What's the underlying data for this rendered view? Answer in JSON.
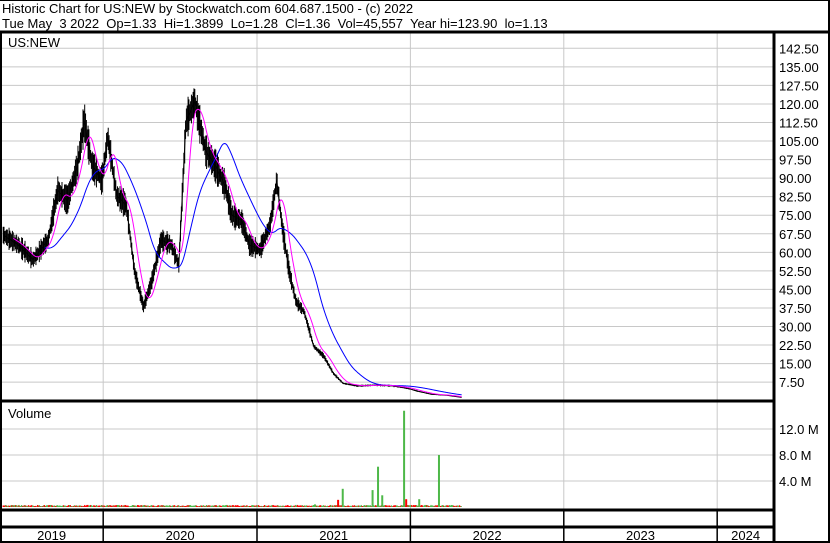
{
  "header": {
    "title": "Historic Chart for US:NEW by Stockwatch.com 604.687.1500 - (c) 2022",
    "quote": "Tue May  3 2022  Op=1.33  Hi=1.3899  Lo=1.28  Cl=1.36  Vol=45,557  Year hi=123.90  lo=1.13"
  },
  "chart_data": [
    {
      "type": "line",
      "title": "US:NEW",
      "ylim": [
        0,
        145
      ],
      "yticks": [
        "7.50",
        "15.00",
        "22.50",
        "30.00",
        "37.50",
        "45.00",
        "52.50",
        "60.00",
        "67.50",
        "75.00",
        "82.50",
        "90.00",
        "97.50",
        "105.00",
        "112.50",
        "120.00",
        "127.50",
        "135.00",
        "142.50"
      ],
      "grid": true,
      "colors": {
        "price": "#000000",
        "ma_short": "#ff00ff",
        "ma_long": "#0000ff"
      },
      "series": [
        {
          "values": [
            [
              "2019-05-08",
              67
            ],
            [
              "2019-06-13",
              63
            ],
            [
              "2019-07-18",
              57
            ],
            [
              "2019-08-23",
              65
            ],
            [
              "2019-09-15",
              85
            ],
            [
              "2019-10-08",
              81
            ],
            [
              "2019-11-01",
              95
            ],
            [
              "2019-11-17",
              113
            ],
            [
              "2019-12-06",
              95
            ],
            [
              "2019-12-29",
              89
            ],
            [
              "2020-01-12",
              107
            ],
            [
              "2020-02-02",
              83
            ],
            [
              "2020-02-25",
              79
            ],
            [
              "2020-03-16",
              52
            ],
            [
              "2020-04-06",
              38
            ],
            [
              "2020-04-25",
              48
            ],
            [
              "2020-05-18",
              65
            ],
            [
              "2020-06-11",
              63
            ],
            [
              "2020-06-29",
              55
            ],
            [
              "2020-07-16",
              113
            ],
            [
              "2020-08-06",
              121
            ],
            [
              "2020-09-01",
              101
            ],
            [
              "2020-09-24",
              95
            ],
            [
              "2020-10-17",
              87
            ],
            [
              "2020-11-02",
              75
            ],
            [
              "2020-11-25",
              73
            ],
            [
              "2020-12-14",
              63
            ],
            [
              "2021-01-08",
              61
            ],
            [
              "2021-02-01",
              71
            ],
            [
              "2021-02-17",
              89
            ],
            [
              "2021-03-03",
              69
            ],
            [
              "2021-03-19",
              52
            ],
            [
              "2021-04-04",
              40
            ],
            [
              "2021-04-23",
              36
            ],
            [
              "2021-05-16",
              22
            ],
            [
              "2021-06-09",
              18
            ],
            [
              "2021-07-02",
              11
            ],
            [
              "2021-07-25",
              7
            ],
            [
              "2021-08-29",
              6
            ],
            [
              "2021-10-15",
              6.3
            ],
            [
              "2021-11-19",
              6
            ],
            [
              "2021-12-26",
              5
            ],
            [
              "2022-01-17",
              3.9
            ],
            [
              "2022-02-20",
              2.6
            ],
            [
              "2022-03-28",
              2.2
            ],
            [
              "2022-05-03",
              1.36
            ]
          ]
        }
      ]
    },
    {
      "type": "bar",
      "title": "Volume",
      "ylim": [
        0,
        16
      ],
      "yticks": [
        "4.0 M",
        "8.0 M",
        "12.0 M"
      ],
      "grid": true,
      "colors": {
        "up": "#4db848",
        "down": "#ff0000"
      },
      "series": [
        {
          "values": [
            [
              "2021-05-19",
              0.4,
              "up"
            ],
            [
              "2021-07-13",
              1.1,
              "down"
            ],
            [
              "2021-07-24",
              2.8,
              "up"
            ],
            [
              "2021-10-03",
              2.6,
              "up"
            ],
            [
              "2021-10-16",
              6.2,
              "up"
            ],
            [
              "2021-10-26",
              1.8,
              "up"
            ],
            [
              "2021-12-17",
              14.8,
              "up"
            ],
            [
              "2021-12-22",
              1.2,
              "down"
            ],
            [
              "2022-01-22",
              1.2,
              "up"
            ],
            [
              "2022-03-10",
              8.0,
              "up"
            ]
          ]
        }
      ]
    }
  ],
  "xaxis": {
    "years": [
      "2019",
      "2020",
      "2021",
      "2022",
      "2023",
      "2024"
    ]
  }
}
